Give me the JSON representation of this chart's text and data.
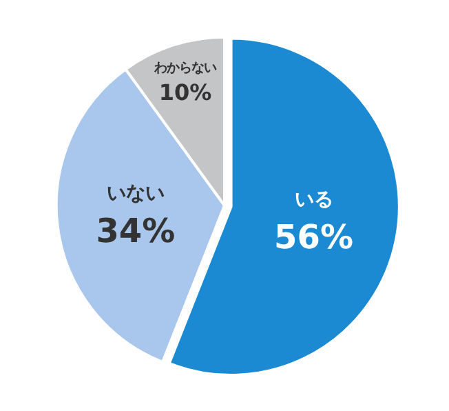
{
  "chart_data": {
    "type": "pie",
    "categories": [
      "いる",
      "いない",
      "わからない"
    ],
    "values": [
      56,
      34,
      10
    ],
    "value_labels": [
      "56%",
      "34%",
      "10%"
    ],
    "colors": [
      "#1b8ad3",
      "#a9c7ec",
      "#c4c5c7"
    ],
    "legend": false
  }
}
